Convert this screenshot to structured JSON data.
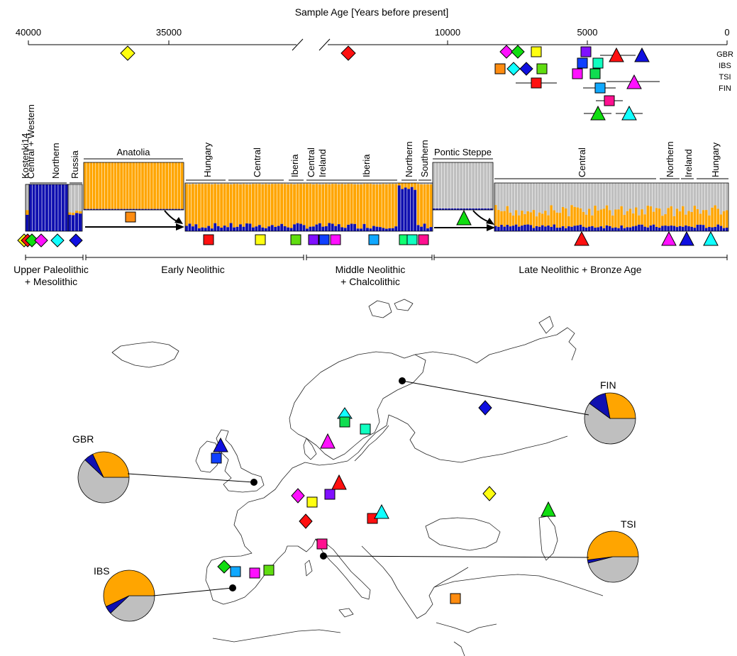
{
  "timeline": {
    "title": "Sample Age [Years before present]",
    "ticks": [
      "40000",
      "35000",
      "10000",
      "5000",
      "0"
    ],
    "populations": [
      "GBR",
      "IBS",
      "TSI",
      "FIN"
    ]
  },
  "colors": {
    "gray": "#bfbfbf",
    "orange": "#ffa500",
    "blue": "#1010b0",
    "red": "#ff1010",
    "yellow": "#ffff10",
    "green": "#10dd10",
    "lime": "#60dd10",
    "magenta": "#ff10ff",
    "violet": "#8010ff",
    "royal": "#1040ff",
    "cyan": "#10ffff",
    "sky": "#10a8ff",
    "mint": "#10ffa0",
    "pink": "#ff1090",
    "spring": "#10ff70",
    "darkblue": "#1010e0",
    "teal": "#10ffc0"
  },
  "structure": {
    "group_labels": {
      "kostenki": "Kostenki14",
      "central_western": "Central + Western",
      "northern1": "Northern",
      "russia": "Russia",
      "anatolia": "Anatolia",
      "hungary1": "Hungary",
      "central1": "Central",
      "iberia1": "Iberia",
      "central2": "Central",
      "ireland1": "Ireland",
      "iberia2": "Iberia",
      "northern2": "Northern",
      "southern": "Southern",
      "pontic": "Pontic Steppe",
      "central3": "Central",
      "northern3": "Northern",
      "ireland2": "Ireland",
      "hungary2": "Hungary"
    },
    "periods": [
      "Upper Paleolithic",
      "+ Mesolithic",
      "Early Neolithic",
      "Middle Neolithic",
      "+ Chalcolithic",
      "Late Neolithic + Bronze Age"
    ]
  },
  "map": {
    "pies": [
      {
        "label": "GBR",
        "gray": 0.62,
        "blue": 0.06,
        "orange": 0.32
      },
      {
        "label": "FIN",
        "gray": 0.6,
        "blue": 0.12,
        "orange": 0.28
      },
      {
        "label": "IBS",
        "gray": 0.38,
        "blue": 0.05,
        "orange": 0.57
      },
      {
        "label": "TSI",
        "gray": 0.46,
        "blue": 0.02,
        "orange": 0.52
      }
    ]
  }
}
